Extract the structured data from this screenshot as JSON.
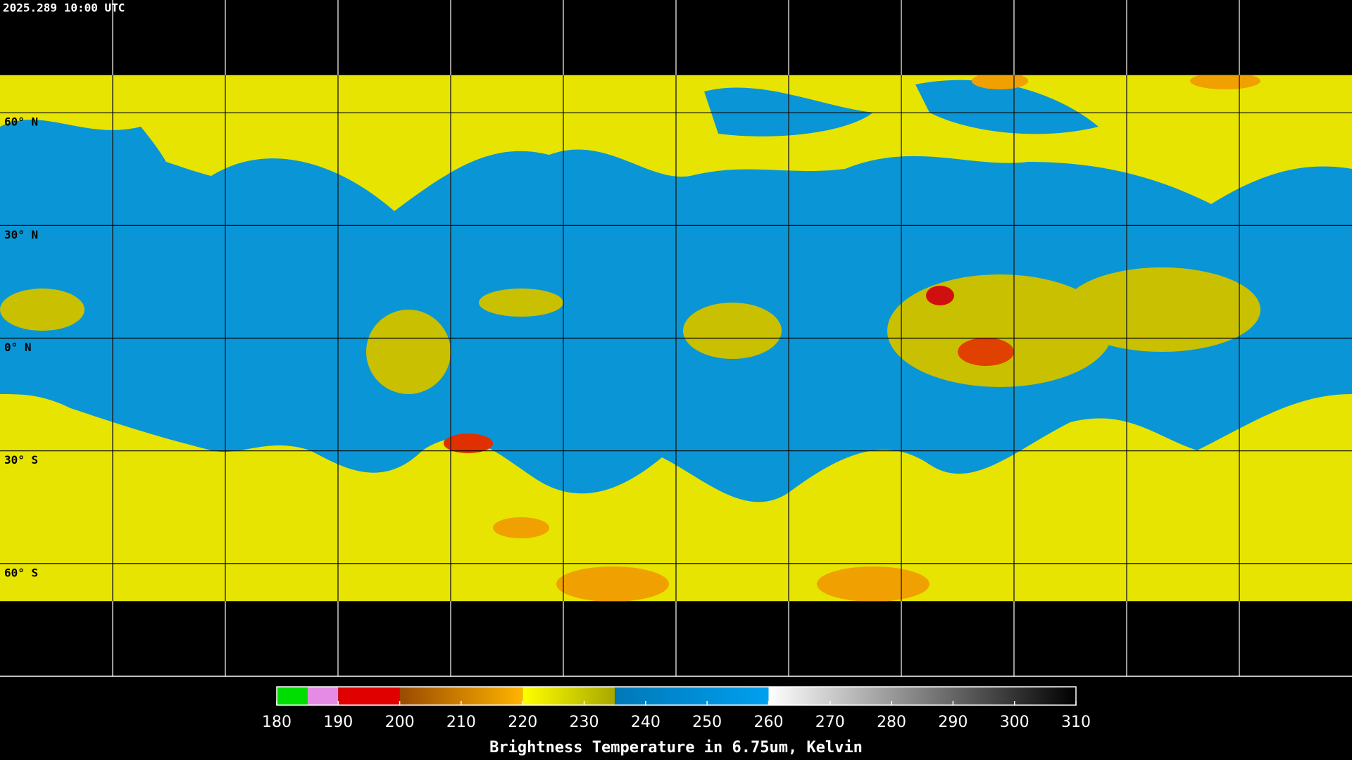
{
  "timestamp": "2025.289 10:00 UTC",
  "map": {
    "latlim": [
      90,
      -90
    ],
    "band": [
      70,
      -70
    ],
    "parallels": [
      {
        "value": 60,
        "label": "60° N"
      },
      {
        "value": 30,
        "label": "30° N"
      },
      {
        "value": 0,
        "label": "0° N"
      },
      {
        "value": -30,
        "label": "30° S"
      },
      {
        "value": -60,
        "label": "60° S"
      }
    ],
    "meridian_count": 12
  },
  "colorbar": {
    "title": "Brightness Temperature in 6.75um, Kelvin",
    "lim": [
      180,
      310
    ],
    "ticks": [
      180,
      190,
      200,
      210,
      220,
      230,
      240,
      250,
      260,
      270,
      280,
      290,
      300,
      310
    ],
    "segments": [
      {
        "from": 180,
        "to": 185,
        "colors": [
          "#00dd00",
          "#00dd00"
        ]
      },
      {
        "from": 185,
        "to": 190,
        "colors": [
          "#e58ae5",
          "#e58ae5"
        ]
      },
      {
        "from": 190,
        "to": 200,
        "colors": [
          "#e00000",
          "#e00000"
        ]
      },
      {
        "from": 200,
        "to": 220,
        "colors": [
          "#9a4a00",
          "#ffb400"
        ]
      },
      {
        "from": 220,
        "to": 235,
        "colors": [
          "#ffff00",
          "#a8a800"
        ]
      },
      {
        "from": 235,
        "to": 260,
        "colors": [
          "#0078b8",
          "#00a0f0"
        ]
      },
      {
        "from": 260,
        "to": 310,
        "colors": [
          "#ffffff",
          "#000000"
        ]
      }
    ]
  }
}
